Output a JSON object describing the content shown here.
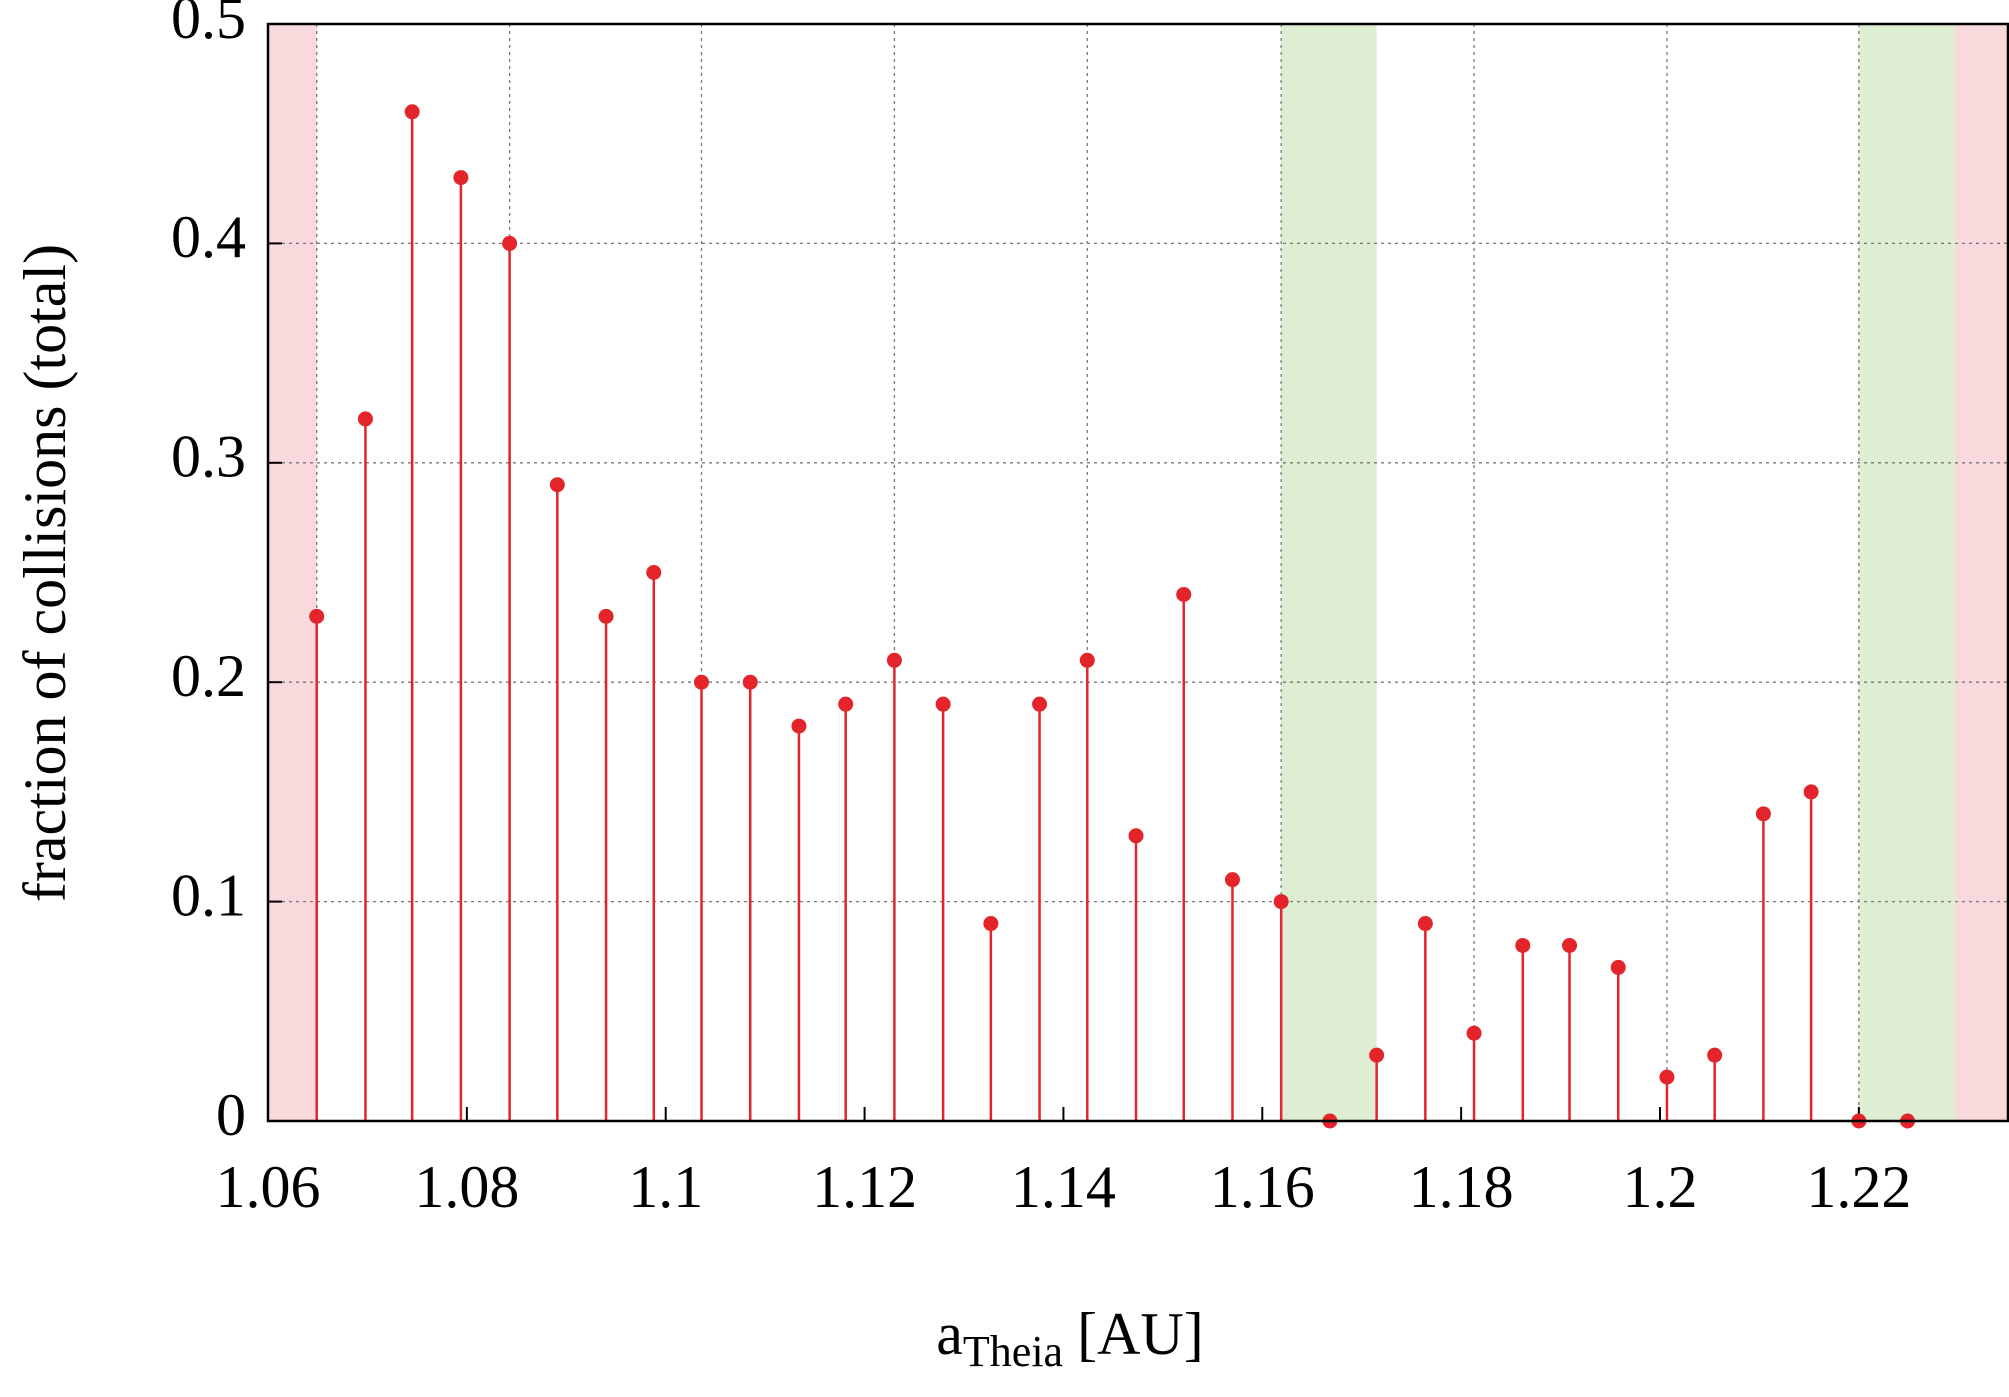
{
  "chart_data": {
    "type": "stem",
    "ylabel": "fraction of collisions (total)",
    "xlabel": {
      "base": "a",
      "sub": "Theia",
      "unit": "[AU]"
    },
    "x": [
      1.0649,
      1.0698,
      1.0745,
      1.0794,
      1.0843,
      1.0891,
      1.094,
      1.0988,
      1.1036,
      1.1085,
      1.1134,
      1.1181,
      1.123,
      1.1279,
      1.1327,
      1.1376,
      1.1424,
      1.1473,
      1.1521,
      1.157,
      1.1619,
      1.1668,
      1.1715,
      1.1764,
      1.1813,
      1.1862,
      1.1909,
      1.1958,
      1.2007,
      1.2055,
      1.2104,
      1.2152,
      1.22,
      1.2249
    ],
    "values": [
      0.23,
      0.32,
      0.46,
      0.43,
      0.4,
      0.29,
      0.23,
      0.25,
      0.2,
      0.2,
      0.18,
      0.19,
      0.21,
      0.19,
      0.09,
      0.19,
      0.21,
      0.13,
      0.24,
      0.11,
      0.1,
      0,
      0.03,
      0.09,
      0.04,
      0.08,
      0.08,
      0.07,
      0.02,
      0.03,
      0.14,
      0.15,
      0,
      0
    ],
    "color": "#e3242b",
    "xlim": [
      1.06,
      1.235
    ],
    "ylim": [
      0,
      0.5
    ],
    "xticks": [
      1.06,
      1.08,
      1.1,
      1.12,
      1.14,
      1.16,
      1.18,
      1.2,
      1.22
    ],
    "yticks": [
      0,
      0.1,
      0.2,
      0.3,
      0.4,
      0.5
    ],
    "xgrid": [
      1.0649,
      1.0843,
      1.1036,
      1.123,
      1.1424,
      1.1619,
      1.1813,
      1.2007,
      1.22
    ],
    "grid": true,
    "bands": [
      {
        "x": [
          1.06,
          1.0649
        ],
        "color": "#fad9dd"
      },
      {
        "x": [
          1.1619,
          1.1715
        ],
        "color": "#ddeed3"
      },
      {
        "x": [
          1.22,
          1.2297
        ],
        "color": "#ddeed3"
      },
      {
        "x": [
          1.2297,
          1.235
        ],
        "color": "#fad9dd"
      }
    ]
  }
}
